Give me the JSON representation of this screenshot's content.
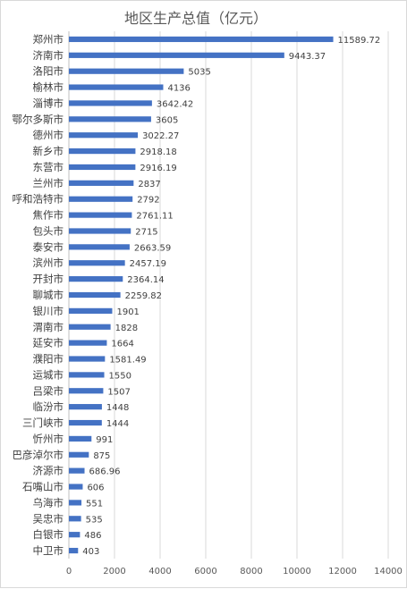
{
  "chart_data": {
    "type": "bar",
    "orientation": "horizontal",
    "title": "地区生产总值（亿元）",
    "categories": [
      "郑州市",
      "济南市",
      "洛阳市",
      "榆林市",
      "淄博市",
      "鄂尔多斯市",
      "德州市",
      "新乡市",
      "东营市",
      "兰州市",
      "呼和浩特市",
      "焦作市",
      "包头市",
      "泰安市",
      "滨州市",
      "开封市",
      "聊城市",
      "银川市",
      "渭南市",
      "延安市",
      "濮阳市",
      "运城市",
      "吕梁市",
      "临汾市",
      "三门峡市",
      "忻州市",
      "巴彦淖尔市",
      "济源市",
      "石嘴山市",
      "乌海市",
      "吴忠市",
      "白银市",
      "中卫市"
    ],
    "values": [
      11589.72,
      9443.37,
      5035,
      4136,
      3642.42,
      3605,
      3022.27,
      2918.18,
      2916.19,
      2837,
      2792,
      2761.11,
      2715,
      2663.59,
      2457.19,
      2364.14,
      2259.82,
      1901,
      1828,
      1664,
      1581.49,
      1550,
      1507,
      1448,
      1444,
      991,
      875,
      686.96,
      606,
      551,
      535,
      486,
      403
    ],
    "value_labels": [
      "11589.72",
      "9443.37",
      "5035",
      "4136",
      "3642.42",
      "3605",
      "3022.27",
      "2918.18",
      "2916.19",
      "2837",
      "2792",
      "2761.11",
      "2715",
      "2663.59",
      "2457.19",
      "2364.14",
      "2259.82",
      "1901",
      "1828",
      "1664",
      "1581.49",
      "1550",
      "1507",
      "1448",
      "1444",
      "991",
      "875",
      "686.96",
      "606",
      "551",
      "535",
      "486",
      "403"
    ],
    "xlim": [
      0,
      14000
    ],
    "x_ticks": [
      "0",
      "2000",
      "4000",
      "6000",
      "8000",
      "10000",
      "12000",
      "14000"
    ],
    "grid": true,
    "legend": "none",
    "bar_color": "#4472c4",
    "grid_color": "#d9d9d9"
  }
}
